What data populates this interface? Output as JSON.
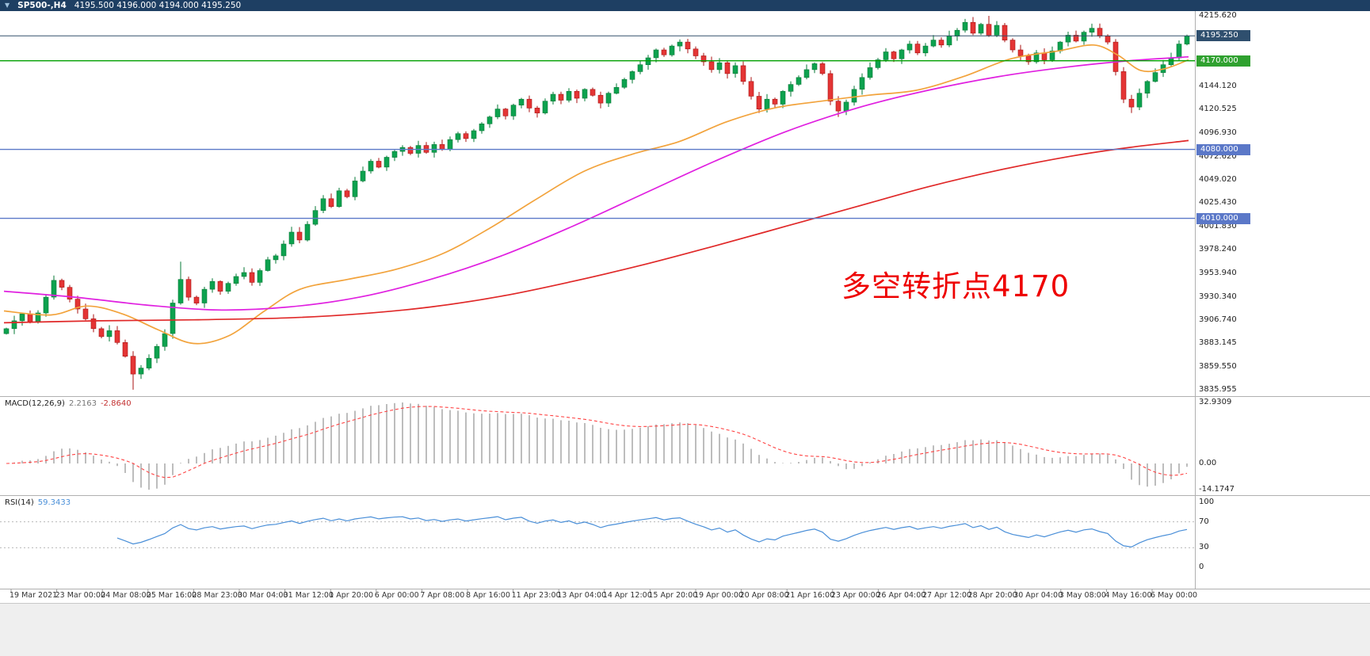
{
  "header": {
    "dropdown_icon": "▼",
    "symbol": "SP500-,H4",
    "ohlc": "4195.500 4196.000 4194.000 4195.250"
  },
  "annotation": {
    "text": "多空转折点4170"
  },
  "macd_panel": {
    "name": "MACD(12,26,9)",
    "main_value": "2.2163",
    "signal_value": "-2.8640",
    "scale": [
      {
        "text": "32.9309",
        "value": 32.9309
      },
      {
        "text": "0.00",
        "value": 0
      },
      {
        "text": "-14.1747",
        "value": -14.1747
      }
    ]
  },
  "rsi_panel": {
    "name": "RSI(14)",
    "value": "59.3433",
    "scale": [
      {
        "text": "100",
        "value": 100
      },
      {
        "text": "70",
        "value": 70
      },
      {
        "text": "30",
        "value": 30
      },
      {
        "text": "0",
        "value": 0
      }
    ]
  },
  "price_scale": {
    "labels": [
      {
        "text": "4215.620",
        "price": 4215.62
      },
      {
        "text": "4144.120",
        "price": 4144.12
      },
      {
        "text": "4120.525",
        "price": 4120.525
      },
      {
        "text": "4096.930",
        "price": 4096.93
      },
      {
        "text": "4072.620",
        "price": 4072.62
      },
      {
        "text": "4049.020",
        "price": 4049.02
      },
      {
        "text": "4025.430",
        "price": 4025.43
      },
      {
        "text": "4001.830",
        "price": 4001.83
      },
      {
        "text": "3978.240",
        "price": 3978.24
      },
      {
        "text": "3953.940",
        "price": 3953.94
      },
      {
        "text": "3930.340",
        "price": 3930.34
      },
      {
        "text": "3906.740",
        "price": 3906.74
      },
      {
        "text": "3883.145",
        "price": 3883.145
      },
      {
        "text": "3859.550",
        "price": 3859.55
      },
      {
        "text": "3835.955",
        "price": 3835.955
      }
    ],
    "boxes": [
      {
        "text": "4195.250",
        "price": 4195.25,
        "type": "current"
      },
      {
        "text": "4170.000",
        "price": 4170,
        "type": "green"
      },
      {
        "text": "4080.000",
        "price": 4080,
        "type": "blue"
      },
      {
        "text": "4010.000",
        "price": 4010,
        "type": "blue"
      }
    ]
  },
  "time_axis": {
    "labels": [
      "19 Mar 2021",
      "23 Mar 00:00",
      "24 Mar 08:00",
      "25 Mar 16:00",
      "28 Mar 23:00",
      "30 Mar 04:00",
      "31 Mar 12:00",
      "1 Apr 20:00",
      "6 Apr 00:00",
      "7 Apr 08:00",
      "8 Apr 16:00",
      "11 Apr 23:00",
      "13 Apr 04:00",
      "14 Apr 12:00",
      "15 Apr 20:00",
      "19 Apr 00:00",
      "20 Apr 08:00",
      "21 Apr 16:00",
      "23 Apr 00:00",
      "26 Apr 04:00",
      "27 Apr 12:00",
      "28 Apr 20:00",
      "30 Apr 04:00",
      "3 May 08:00",
      "4 May 16:00",
      "6 May 00:00"
    ]
  },
  "colors": {
    "header_bg": "#1e3f63",
    "candle_up": "#0da24f",
    "candle_up_border": "#067a36",
    "candle_down": "#e43535",
    "candle_down_border": "#a81111",
    "ma_fast": "#f2a33c",
    "ma_mid": "#e020e0",
    "ma_slow": "#e02828",
    "hline_green": "#009f00",
    "hline_blue": "#5b78c8",
    "current_price_line": "#33506b",
    "macd_hist": "#bdbdbd",
    "macd_signal": "#ff4343",
    "rsi_line": "#4a8fd8",
    "box_current": "#2f4f6e",
    "box_green": "#2fa12f",
    "box_blue": "#5b78c8",
    "annotation": "#ee0000"
  },
  "chart_data": {
    "type": "candlestick",
    "symbol": "SP500-",
    "timeframe": "H4",
    "title": "SP500-,H4",
    "current_ohlc": {
      "open": 4195.5,
      "high": 4196.0,
      "low": 4194.0,
      "close": 4195.25
    },
    "price_axis": {
      "min": 3835.955,
      "max": 4215.62
    },
    "x_range": {
      "start": "19 Mar 2021",
      "end": "6 May 2021 00:00"
    },
    "closes": [
      3898,
      3906,
      3913,
      3905,
      3914,
      3930,
      3947,
      3940,
      3928,
      3918,
      3908,
      3898,
      3890,
      3896,
      3884,
      3870,
      3852,
      3858,
      3868,
      3880,
      3893,
      3924,
      3948,
      3930,
      3924,
      3938,
      3946,
      3936,
      3944,
      3951,
      3955,
      3945,
      3957,
      3968,
      3972,
      3984,
      3996,
      3988,
      4004,
      4018,
      4030,
      4022,
      4038,
      4032,
      4048,
      4058,
      4068,
      4062,
      4072,
      4078,
      4082,
      4076,
      4084,
      4077,
      4085,
      4080,
      4090,
      4096,
      4091,
      4099,
      4106,
      4113,
      4121,
      4114,
      4125,
      4131,
      4122,
      4117,
      4129,
      4136,
      4130,
      4139,
      4132,
      4141,
      4135,
      4127,
      4137,
      4143,
      4151,
      4159,
      4166,
      4173,
      4181,
      4176,
      4185,
      4189,
      4182,
      4175,
      4169,
      4161,
      4168,
      4157,
      4165,
      4149,
      4134,
      4121,
      4131,
      4126,
      4139,
      4146,
      4153,
      4161,
      4167,
      4157,
      4129,
      4119,
      4128,
      4141,
      4153,
      4163,
      4171,
      4179,
      4172,
      4181,
      4187,
      4178,
      4185,
      4191,
      4186,
      4195,
      4201,
      4209,
      4198,
      4207,
      4196,
      4206,
      4191,
      4181,
      4175,
      4169,
      4178,
      4171,
      4180,
      4189,
      4196,
      4190,
      4199,
      4203,
      4195,
      4189,
      4159,
      4131,
      4123,
      4137,
      4149,
      4158,
      4166,
      4173,
      4187,
      4195.25
    ],
    "wick_overrides": {
      "6": {
        "high": 3952
      },
      "16": {
        "low": 3836
      },
      "22": {
        "high": 3966
      },
      "95": {
        "low": 4117
      },
      "105": {
        "low": 4113
      },
      "121": {
        "high": 4212.5
      },
      "124": {
        "high": 4215.6
      },
      "142": {
        "low": 4117
      },
      "149": {
        "high": 4196.5
      }
    },
    "overlays": [
      {
        "name": "ma-fast",
        "color": "#f2a33c",
        "points": [
          [
            0,
            3916
          ],
          [
            0.04,
            3912
          ],
          [
            0.07,
            3921
          ],
          [
            0.1,
            3913
          ],
          [
            0.13,
            3897
          ],
          [
            0.16,
            3883
          ],
          [
            0.19,
            3891
          ],
          [
            0.22,
            3916
          ],
          [
            0.25,
            3938
          ],
          [
            0.29,
            3948
          ],
          [
            0.33,
            3958
          ],
          [
            0.37,
            3974
          ],
          [
            0.41,
            4000
          ],
          [
            0.45,
            4030
          ],
          [
            0.49,
            4058
          ],
          [
            0.53,
            4075
          ],
          [
            0.57,
            4088
          ],
          [
            0.61,
            4108
          ],
          [
            0.65,
            4122
          ],
          [
            0.69,
            4129
          ],
          [
            0.73,
            4135
          ],
          [
            0.77,
            4140
          ],
          [
            0.81,
            4154
          ],
          [
            0.85,
            4172
          ],
          [
            0.89,
            4180
          ],
          [
            0.92,
            4186
          ],
          [
            0.94,
            4176
          ],
          [
            0.96,
            4160
          ],
          [
            0.98,
            4162
          ],
          [
            1,
            4171
          ]
        ]
      },
      {
        "name": "ma-mid",
        "color": "#e020e0",
        "points": [
          [
            0,
            3936
          ],
          [
            0.06,
            3930
          ],
          [
            0.12,
            3922
          ],
          [
            0.18,
            3917
          ],
          [
            0.24,
            3920
          ],
          [
            0.3,
            3930
          ],
          [
            0.36,
            3948
          ],
          [
            0.42,
            3972
          ],
          [
            0.48,
            4002
          ],
          [
            0.54,
            4035
          ],
          [
            0.6,
            4068
          ],
          [
            0.66,
            4098
          ],
          [
            0.72,
            4122
          ],
          [
            0.78,
            4140
          ],
          [
            0.84,
            4154
          ],
          [
            0.9,
            4164
          ],
          [
            0.95,
            4170
          ],
          [
            1,
            4174
          ]
        ]
      },
      {
        "name": "ma-slow",
        "color": "#e02828",
        "points": [
          [
            0,
            3904
          ],
          [
            0.08,
            3906
          ],
          [
            0.16,
            3907
          ],
          [
            0.24,
            3909
          ],
          [
            0.3,
            3913
          ],
          [
            0.36,
            3920
          ],
          [
            0.42,
            3931
          ],
          [
            0.48,
            3946
          ],
          [
            0.54,
            3963
          ],
          [
            0.6,
            3982
          ],
          [
            0.66,
            4002
          ],
          [
            0.72,
            4022
          ],
          [
            0.78,
            4042
          ],
          [
            0.84,
            4059
          ],
          [
            0.9,
            4073
          ],
          [
            0.95,
            4082
          ],
          [
            1,
            4089
          ]
        ]
      }
    ],
    "hlines": [
      {
        "price": 4170,
        "color": "#009f00",
        "label": "4170.000"
      },
      {
        "price": 4080,
        "color": "#5b78c8",
        "label": "4080.000"
      },
      {
        "price": 4010,
        "color": "#5b78c8",
        "label": "4010.000"
      },
      {
        "price": 4195.25,
        "color": "#33506b",
        "label": "4195.250",
        "role": "current-price"
      }
    ],
    "indicators": {
      "macd": {
        "params": [
          12,
          26,
          9
        ],
        "main": 2.2163,
        "signal": -2.864,
        "scale_max": 32.9309,
        "scale_min": -14.1747
      },
      "rsi": {
        "period": 14,
        "value": 59.3433,
        "levels": [
          70,
          30
        ]
      }
    }
  }
}
